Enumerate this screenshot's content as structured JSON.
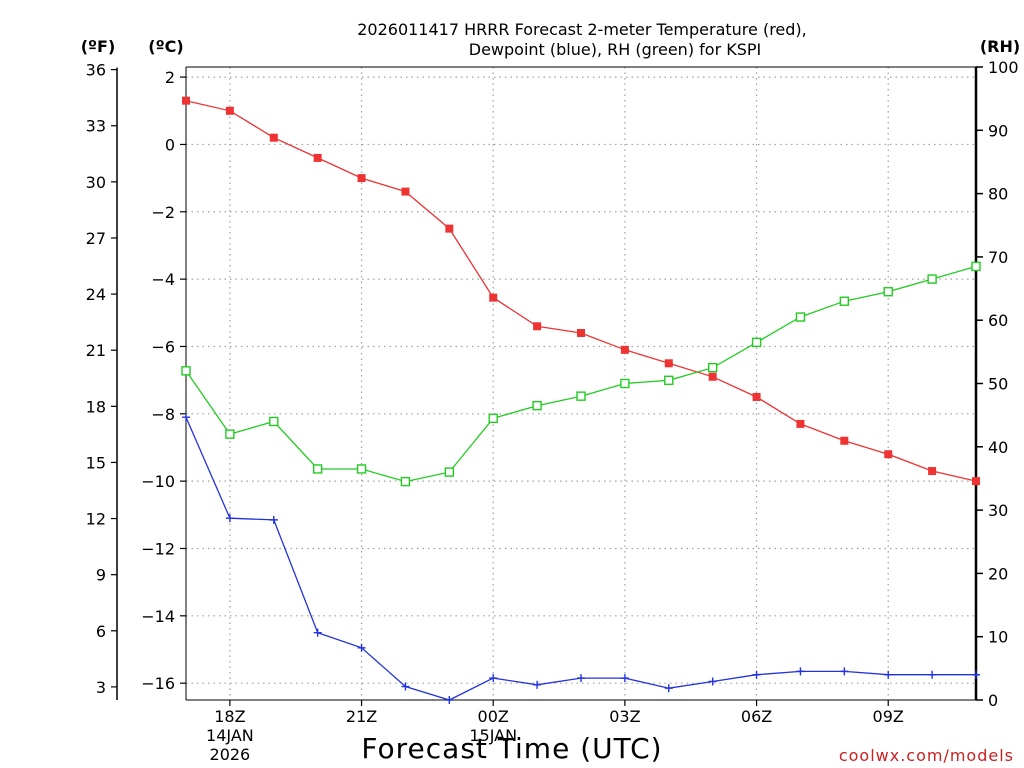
{
  "chart_data": {
    "type": "line",
    "title_line1": "2026011417 HRRR Forecast 2-meter Temperature (red),",
    "title_line2": "Dewpoint (blue), RH (green) for KSPI",
    "units": {
      "fahrenheit": "(ºF)",
      "celsius": "(ºC)",
      "rh": "(RH)"
    },
    "xlabel": "Forecast Time (UTC)",
    "credit": "coolwx.com/models",
    "x_hours": [
      17,
      18,
      19,
      20,
      21,
      22,
      23,
      24,
      25,
      26,
      27,
      28,
      29,
      30,
      31,
      32,
      33,
      34,
      35
    ],
    "xlim": [
      17,
      35
    ],
    "x_ticks": [
      {
        "hour": 18,
        "label": "18Z",
        "date": "14JAN",
        "year": "2026"
      },
      {
        "hour": 21,
        "label": "21Z"
      },
      {
        "hour": 24,
        "label": "00Z",
        "date": "15JAN"
      },
      {
        "hour": 27,
        "label": "03Z"
      },
      {
        "hour": 30,
        "label": "06Z"
      },
      {
        "hour": 33,
        "label": "09Z"
      }
    ],
    "ylim_c": [
      -16.5,
      2.3
    ],
    "ylim_rh": [
      0,
      100
    ],
    "yticks_c": [
      "2",
      "0",
      "−2",
      "−4",
      "−6",
      "−8",
      "−10",
      "−12",
      "−14",
      "−16"
    ],
    "yticks_f": [
      "36",
      "33",
      "30",
      "27",
      "24",
      "21",
      "18",
      "15",
      "12",
      "9",
      "6",
      "3"
    ],
    "yticks_rh": [
      "100",
      "90",
      "80",
      "70",
      "60",
      "50",
      "40",
      "30",
      "20",
      "10",
      "0"
    ],
    "series": [
      {
        "name": "Temperature",
        "color": "#ee3333",
        "axis": "c",
        "marker": "square-filled",
        "values": [
          1.3,
          1.0,
          0.2,
          -0.4,
          -1.0,
          -1.4,
          -2.5,
          -4.55,
          -5.4,
          -5.6,
          -6.1,
          -6.5,
          -6.9,
          -7.5,
          -8.3,
          -8.8,
          -9.2,
          -9.7,
          -10.0
        ]
      },
      {
        "name": "Dewpoint",
        "color": "#2233dd",
        "axis": "c",
        "marker": "plus",
        "values": [
          -8.1,
          -11.1,
          -11.15,
          -14.5,
          -14.95,
          -16.1,
          -16.5,
          -15.85,
          -16.05,
          -15.85,
          -15.85,
          -16.15,
          -15.95,
          -15.75,
          -15.65,
          -15.65,
          -15.75,
          -15.75,
          -15.75
        ]
      },
      {
        "name": "RH",
        "color": "#22cc22",
        "axis": "rh",
        "marker": "square-open",
        "values": [
          52,
          42,
          44,
          36.5,
          36.5,
          34.5,
          36,
          44.5,
          46.5,
          48,
          50,
          50.5,
          52.5,
          56.5,
          60.5,
          63,
          64.5,
          66.5,
          68.5
        ]
      }
    ]
  }
}
